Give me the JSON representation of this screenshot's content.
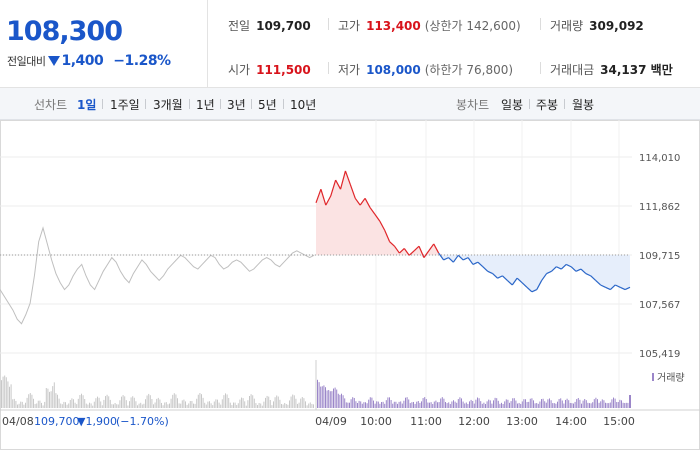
{
  "summary": {
    "price": "108,300",
    "change_label": "전일대비",
    "change_value": "1,400",
    "change_pct": "−1.28%",
    "prev_close": {
      "label": "전일",
      "value": "109,700"
    },
    "high": {
      "label": "고가",
      "value": "113,400",
      "sub": "(상한가 142,600)"
    },
    "volume": {
      "label": "거래량",
      "value": "309,092"
    },
    "open": {
      "label": "시가",
      "value": "111,500"
    },
    "low": {
      "label": "저가",
      "value": "108,000",
      "sub": "(하한가 76,800)"
    },
    "turnover": {
      "label": "거래대금",
      "value": "34,137 백만"
    }
  },
  "toolbar": {
    "line_label": "선차트",
    "line_periods": [
      "1일",
      "1주일",
      "3개월",
      "1년",
      "3년",
      "5년",
      "10년"
    ],
    "active_period": "1일",
    "candle_label": "봉차트",
    "candle_periods": [
      "일봉",
      "주봉",
      "월봉"
    ]
  },
  "chart_data": {
    "type": "line",
    "y_ticks": [
      "114,010",
      "111,862",
      "109,715",
      "107,567",
      "105,419"
    ],
    "ylim": [
      105419,
      114010
    ],
    "baseline": 109715,
    "x_labels": [
      "04/09",
      "10:00",
      "11:00",
      "12:00",
      "13:00",
      "14:00",
      "15:00"
    ],
    "prev_day_label": "04/08",
    "prev_day_close": "109,700",
    "prev_day_change": "▼1,900",
    "prev_day_pct": "(−1.70%)",
    "volume_legend": "거래량",
    "prev_day_series": [
      108200,
      107900,
      107600,
      107300,
      106900,
      106700,
      107100,
      107600,
      108800,
      110300,
      110900,
      110200,
      109500,
      108900,
      108500,
      108200,
      108400,
      108800,
      109100,
      109300,
      108800,
      108400,
      108200,
      108600,
      109000,
      109300,
      109600,
      109400,
      109000,
      108700,
      108500,
      108900,
      109200,
      109500,
      109300,
      109000,
      108800,
      108600,
      108800,
      109100,
      109300,
      109500,
      109700,
      109600,
      109400,
      109200,
      109100,
      109300,
      109500,
      109700,
      109600,
      109300,
      109100,
      109200,
      109400,
      109500,
      109400,
      109200,
      109000,
      109100,
      109300,
      109500,
      109600,
      109500,
      109300,
      109200,
      109400,
      109600,
      109800,
      109900,
      109800,
      109700,
      109600,
      109700
    ],
    "today_series": [
      112000,
      112600,
      111900,
      112300,
      113000,
      112600,
      113400,
      112800,
      112200,
      111900,
      112200,
      111800,
      111500,
      111200,
      110800,
      110300,
      110100,
      109800,
      110000,
      109700,
      109900,
      110100,
      109600,
      109900,
      110200,
      109800,
      109500,
      109600,
      109400,
      109700,
      109500,
      109600,
      109300,
      109400,
      109200,
      109000,
      108900,
      108700,
      108800,
      108600,
      108400,
      108700,
      108500,
      108300,
      108100,
      108200,
      108600,
      108900,
      109000,
      109200,
      109100,
      109300,
      109200,
      109000,
      109100,
      108900,
      108800,
      108600,
      108400,
      108300,
      108200,
      108400,
      108300,
      108200,
      108300
    ]
  }
}
